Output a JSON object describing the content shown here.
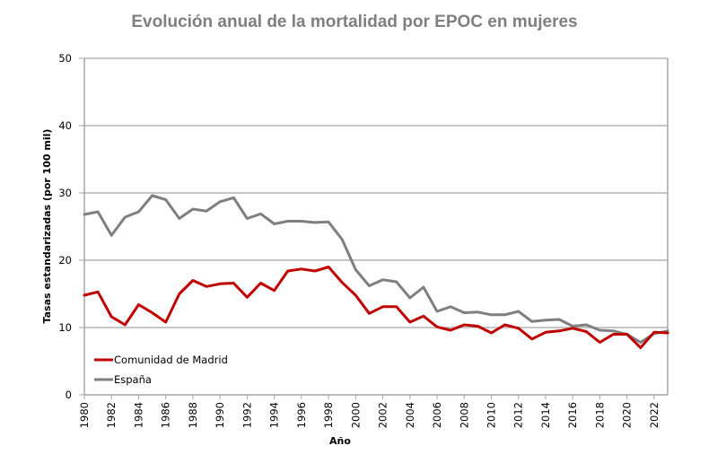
{
  "chart_data": {
    "type": "line",
    "title": "Evolución anual de la mortalidad por EPOC en mujeres",
    "xlabel": "Año",
    "ylabel": "Tasas estandarizadas (por 100 mil)",
    "ylim": [
      0,
      50
    ],
    "yticks": [
      0,
      10,
      20,
      30,
      40,
      50
    ],
    "xticks": [
      "1980",
      "1982",
      "1984",
      "1986",
      "1988",
      "1990",
      "1992",
      "1994",
      "1996",
      "1998",
      "2000",
      "2002",
      "2004",
      "2006",
      "2008",
      "2010",
      "2012",
      "2014",
      "2016",
      "2018",
      "2020",
      "2022"
    ],
    "x": [
      1980,
      1981,
      1982,
      1983,
      1984,
      1985,
      1986,
      1987,
      1988,
      1989,
      1990,
      1991,
      1992,
      1993,
      1994,
      1995,
      1996,
      1997,
      1998,
      1999,
      2000,
      2001,
      2002,
      2003,
      2004,
      2005,
      2006,
      2007,
      2008,
      2009,
      2010,
      2011,
      2012,
      2013,
      2014,
      2015,
      2016,
      2017,
      2018,
      2019,
      2020,
      2021,
      2022,
      2023
    ],
    "grid": "horizontal",
    "legend_position": "bottom-left",
    "series": [
      {
        "name": "Comunidad de Madrid",
        "color": "#c00000",
        "values": [
          14.8,
          15.3,
          11.6,
          10.4,
          13.4,
          12.2,
          10.8,
          15.0,
          17.0,
          16.1,
          16.5,
          16.6,
          14.5,
          16.6,
          15.5,
          18.4,
          18.7,
          18.4,
          19.0,
          16.7,
          14.8,
          12.1,
          13.1,
          13.1,
          10.8,
          11.7,
          10.1,
          9.6,
          10.4,
          10.2,
          9.2,
          10.4,
          9.9,
          8.3,
          9.3,
          9.5,
          9.9,
          9.4,
          7.8,
          9.0,
          9.0,
          7.0,
          9.3,
          9.2
        ]
      },
      {
        "name": "España",
        "color": "#7f7f7f",
        "values": [
          26.8,
          27.2,
          23.7,
          26.4,
          27.2,
          29.6,
          29.0,
          26.2,
          27.6,
          27.3,
          28.7,
          29.3,
          26.2,
          26.9,
          25.4,
          25.8,
          25.8,
          25.6,
          25.7,
          23.1,
          18.6,
          16.2,
          17.1,
          16.8,
          14.4,
          16.0,
          12.4,
          13.1,
          12.2,
          12.3,
          11.9,
          11.9,
          12.4,
          10.9,
          11.1,
          11.2,
          10.2,
          10.4,
          9.6,
          9.5,
          9.0,
          7.8,
          9.1,
          9.5
        ]
      }
    ]
  }
}
